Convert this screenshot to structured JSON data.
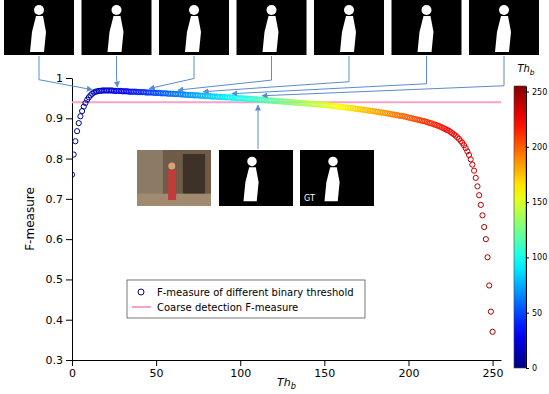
{
  "chart_data": {
    "type": "scatter",
    "xlabel": {
      "text": "Th",
      "subscript": "b"
    },
    "ylabel": "F-measure",
    "xlim": [
      0,
      255
    ],
    "ylim": [
      0.3,
      1
    ],
    "xticks": [
      0,
      50,
      100,
      150,
      200,
      250
    ],
    "yticks": [
      0.3,
      0.4,
      0.5,
      0.6,
      0.7,
      0.8,
      0.9,
      1
    ],
    "legend": "lower left",
    "series": [
      {
        "name": "F-measure of different binary threshold",
        "type": "scatter",
        "marker": "circle",
        "color": "jet",
        "x": [
          0,
          1,
          2,
          3,
          4,
          5,
          6,
          7,
          8,
          9,
          10,
          11,
          12,
          13,
          14,
          15,
          16,
          17,
          18,
          19,
          20,
          21,
          22,
          23,
          24,
          25,
          26,
          27,
          28,
          29,
          30,
          31,
          32,
          33,
          34,
          35,
          36,
          37,
          38,
          39,
          40,
          41,
          42,
          43,
          44,
          45,
          46,
          47,
          48,
          49,
          50,
          51,
          52,
          53,
          54,
          55,
          56,
          57,
          58,
          59,
          60,
          61,
          62,
          63,
          64,
          65,
          66,
          67,
          68,
          69,
          70,
          71,
          72,
          73,
          74,
          75,
          76,
          77,
          78,
          79,
          80,
          81,
          82,
          83,
          84,
          85,
          86,
          87,
          88,
          89,
          90,
          91,
          92,
          93,
          94,
          95,
          96,
          97,
          98,
          99,
          100,
          101,
          102,
          103,
          104,
          105,
          106,
          107,
          108,
          109,
          110,
          111,
          112,
          113,
          114,
          115,
          116,
          117,
          118,
          119,
          120,
          121,
          122,
          123,
          124,
          125,
          126,
          127,
          128,
          129,
          130,
          131,
          132,
          133,
          134,
          135,
          136,
          137,
          138,
          139,
          140,
          141,
          142,
          143,
          144,
          145,
          146,
          147,
          148,
          149,
          150,
          151,
          152,
          153,
          154,
          155,
          156,
          157,
          158,
          159,
          160,
          161,
          162,
          163,
          164,
          165,
          166,
          167,
          168,
          169,
          170,
          171,
          172,
          173,
          174,
          175,
          176,
          177,
          178,
          179,
          180,
          181,
          182,
          183,
          184,
          185,
          186,
          187,
          188,
          189,
          190,
          191,
          192,
          193,
          194,
          195,
          196,
          197,
          198,
          199,
          200,
          201,
          202,
          203,
          204,
          205,
          206,
          207,
          208,
          209,
          210,
          211,
          212,
          213,
          214,
          215,
          216,
          217,
          218,
          219,
          220,
          221,
          222,
          223,
          224,
          225,
          226,
          227,
          228,
          229,
          230,
          231,
          232,
          233,
          234,
          235,
          236,
          237,
          238,
          239,
          240,
          241,
          242,
          243,
          244,
          245,
          246,
          247,
          248,
          249,
          250
        ],
        "values": [
          0.76,
          0.81,
          0.843,
          0.868,
          0.888,
          0.905,
          0.918,
          0.929,
          0.938,
          0.946,
          0.952,
          0.957,
          0.961,
          0.964,
          0.966,
          0.967,
          0.968,
          0.968,
          0.969,
          0.969,
          0.969,
          0.969,
          0.969,
          0.969,
          0.969,
          0.968,
          0.968,
          0.968,
          0.968,
          0.968,
          0.967,
          0.967,
          0.967,
          0.967,
          0.966,
          0.966,
          0.966,
          0.966,
          0.966,
          0.965,
          0.965,
          0.965,
          0.965,
          0.965,
          0.964,
          0.964,
          0.964,
          0.964,
          0.964,
          0.963,
          0.963,
          0.963,
          0.963,
          0.962,
          0.962,
          0.962,
          0.962,
          0.961,
          0.961,
          0.961,
          0.961,
          0.96,
          0.96,
          0.96,
          0.96,
          0.959,
          0.959,
          0.959,
          0.958,
          0.958,
          0.958,
          0.958,
          0.957,
          0.957,
          0.957,
          0.957,
          0.956,
          0.956,
          0.956,
          0.955,
          0.955,
          0.955,
          0.955,
          0.954,
          0.954,
          0.954,
          0.954,
          0.953,
          0.953,
          0.953,
          0.953,
          0.952,
          0.952,
          0.952,
          0.952,
          0.951,
          0.951,
          0.951,
          0.95,
          0.95,
          0.95,
          0.95,
          0.949,
          0.949,
          0.949,
          0.948,
          0.948,
          0.948,
          0.947,
          0.947,
          0.947,
          0.946,
          0.946,
          0.946,
          0.945,
          0.945,
          0.945,
          0.944,
          0.944,
          0.944,
          0.943,
          0.943,
          0.943,
          0.942,
          0.942,
          0.942,
          0.941,
          0.941,
          0.941,
          0.94,
          0.94,
          0.94,
          0.939,
          0.939,
          0.939,
          0.938,
          0.938,
          0.938,
          0.937,
          0.937,
          0.937,
          0.936,
          0.936,
          0.936,
          0.935,
          0.935,
          0.935,
          0.934,
          0.934,
          0.934,
          0.933,
          0.933,
          0.932,
          0.932,
          0.931,
          0.931,
          0.93,
          0.93,
          0.929,
          0.929,
          0.928,
          0.928,
          0.927,
          0.927,
          0.926,
          0.926,
          0.925,
          0.925,
          0.924,
          0.923,
          0.923,
          0.922,
          0.922,
          0.921,
          0.921,
          0.92,
          0.919,
          0.919,
          0.918,
          0.918,
          0.917,
          0.916,
          0.916,
          0.915,
          0.914,
          0.914,
          0.913,
          0.912,
          0.912,
          0.911,
          0.91,
          0.909,
          0.909,
          0.908,
          0.907,
          0.906,
          0.906,
          0.905,
          0.904,
          0.903,
          0.902,
          0.901,
          0.9,
          0.899,
          0.898,
          0.897,
          0.896,
          0.895,
          0.894,
          0.893,
          0.892,
          0.891,
          0.889,
          0.888,
          0.887,
          0.885,
          0.884,
          0.882,
          0.881,
          0.879,
          0.877,
          0.875,
          0.873,
          0.871,
          0.869,
          0.866,
          0.863,
          0.86,
          0.857,
          0.853,
          0.849,
          0.844,
          0.839,
          0.833,
          0.826,
          0.818,
          0.809,
          0.798,
          0.785,
          0.77,
          0.752,
          0.731,
          0.709,
          0.685,
          0.659,
          0.63,
          0.6,
          0.555,
          0.485,
          0.42,
          0.37
        ]
      },
      {
        "name": "Coarse detection F-measure",
        "type": "line",
        "line_style": "solid",
        "color": "#f5a3c7",
        "x": [
          0,
          255
        ],
        "values": [
          0.94,
          0.94
        ]
      }
    ],
    "colorbar": {
      "label": {
        "text": "Th",
        "subscript": "b"
      },
      "range": [
        0,
        255
      ],
      "ticks": [
        0,
        50,
        100,
        150,
        200,
        250
      ]
    },
    "snapshot_thresholds": [
      12,
      27,
      46,
      63,
      78,
      95,
      113
    ],
    "inset_label": "GT"
  }
}
